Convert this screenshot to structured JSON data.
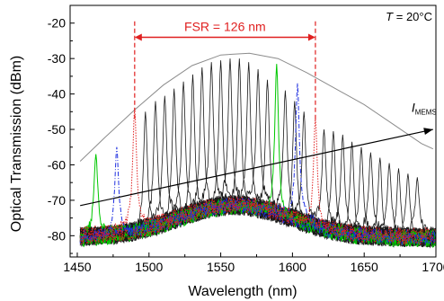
{
  "chart_data": {
    "type": "line",
    "title": "",
    "xlabel": "Wavelength (nm)",
    "ylabel": "Optical Transmission (dBm)",
    "xlim": [
      1445,
      1700
    ],
    "ylim": [
      -86,
      -15
    ],
    "xticks": [
      1450,
      1500,
      1550,
      1600,
      1650,
      1700
    ],
    "yticks": [
      -80,
      -70,
      -60,
      -50,
      -40,
      -30,
      -20
    ],
    "grid": false,
    "colors": {
      "black": "#1a1a1a",
      "green": "#00c800",
      "blue": "#2030e0",
      "red": "#e02020",
      "envelope": "#8c8c8c"
    },
    "annotations": {
      "fsr": {
        "text": "FSR = 126 nm",
        "x_start": 1490,
        "x_end": 1616,
        "y": -24
      },
      "temperature": {
        "var": "T",
        "rest": " = 20°C"
      },
      "current": {
        "var": "I",
        "sub": "MEMS",
        "from": [
          1452,
          -71.5
        ],
        "to": [
          1698,
          -50
        ]
      }
    },
    "envelope": {
      "x": [
        1452,
        1470,
        1490,
        1510,
        1530,
        1550,
        1570,
        1590,
        1610,
        1630,
        1650,
        1670,
        1690,
        1698
      ],
      "y": [
        -59,
        -52,
        -44.5,
        -37.5,
        -32,
        -29,
        -28.5,
        -30,
        -34,
        -38.5,
        -43,
        -48.5,
        -54,
        -55.5
      ]
    },
    "series": [
      {
        "color": "black",
        "style": "solid",
        "peaks": [
          [
            1497.5,
            -45
          ],
          [
            1504.5,
            -42
          ],
          [
            1511,
            -40.5
          ],
          [
            1517.5,
            -38.5
          ],
          [
            1524,
            -36.5
          ],
          [
            1530.5,
            -34.5
          ],
          [
            1537,
            -32.5
          ],
          [
            1543.5,
            -31
          ],
          [
            1550,
            -30.5
          ],
          [
            1556.5,
            -30
          ],
          [
            1563,
            -30
          ],
          [
            1569.5,
            -31
          ],
          [
            1576,
            -33
          ],
          [
            1582.5,
            -36
          ],
          [
            1595,
            -39
          ],
          [
            1601.5,
            -42
          ],
          [
            1608,
            -45
          ],
          [
            1622,
            -50
          ],
          [
            1628.5,
            -50.5
          ],
          [
            1635,
            -51.5
          ],
          [
            1641.5,
            -53.5
          ],
          [
            1648,
            -55
          ],
          [
            1654.5,
            -56.5
          ],
          [
            1661,
            -58
          ],
          [
            1667.5,
            -59.5
          ],
          [
            1674,
            -61
          ],
          [
            1680.5,
            -62.5
          ],
          [
            1687,
            -63.5
          ]
        ]
      },
      {
        "color": "green",
        "style": "solid",
        "peaks": [
          [
            1463,
            -57
          ],
          [
            1589,
            -31.5
          ]
        ]
      },
      {
        "color": "blue",
        "style": "dashdot",
        "peaks": [
          [
            1477.5,
            -55
          ],
          [
            1603.5,
            -37
          ]
        ]
      },
      {
        "color": "red",
        "style": "dotted",
        "peaks": [
          [
            1490,
            -44
          ],
          [
            1616,
            -47
          ]
        ]
      }
    ]
  }
}
